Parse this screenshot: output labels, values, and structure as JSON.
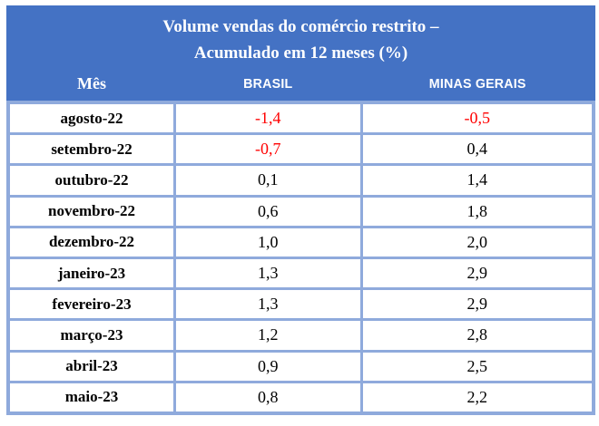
{
  "table": {
    "title_line1": "Volume vendas do comércio restrito –",
    "title_line2": "Acumulado em 12 meses (%)",
    "columns": [
      {
        "label": "Mês"
      },
      {
        "label": "BRASIL"
      },
      {
        "label": "MINAS GERAIS"
      }
    ],
    "rows": [
      {
        "mes": "agosto-22",
        "brasil": "-1,4",
        "minas_gerais": "-0,5"
      },
      {
        "mes": "setembro-22",
        "brasil": "-0,7",
        "minas_gerais": "0,4"
      },
      {
        "mes": "outubro-22",
        "brasil": "0,1",
        "minas_gerais": "1,4"
      },
      {
        "mes": "novembro-22",
        "brasil": "0,6",
        "minas_gerais": "1,8"
      },
      {
        "mes": "dezembro-22",
        "brasil": "1,0",
        "minas_gerais": "2,0"
      },
      {
        "mes": "janeiro-23",
        "brasil": "1,3",
        "minas_gerais": "2,9"
      },
      {
        "mes": "fevereiro-23",
        "brasil": "1,3",
        "minas_gerais": "2,9"
      },
      {
        "mes": "março-23",
        "brasil": "1,2",
        "minas_gerais": "2,8"
      },
      {
        "mes": "abril-23",
        "brasil": "0,9",
        "minas_gerais": "2,5"
      },
      {
        "mes": "maio-23",
        "brasil": "0,8",
        "minas_gerais": "2,2"
      }
    ]
  },
  "colors": {
    "header_bg": "#4472C4",
    "border": "#8FAADC",
    "negative_value": "#FF0000",
    "header_text": "#FFFFFF",
    "body_text": "#000000",
    "cell_bg": "#FFFFFF"
  },
  "chart_data": {
    "type": "table",
    "title": "Volume vendas do comércio restrito – Acumulado em 12 meses (%)",
    "categories": [
      "agosto-22",
      "setembro-22",
      "outubro-22",
      "novembro-22",
      "dezembro-22",
      "janeiro-23",
      "fevereiro-23",
      "março-23",
      "abril-23",
      "maio-23"
    ],
    "series": [
      {
        "name": "BRASIL",
        "values": [
          -1.4,
          -0.7,
          0.1,
          0.6,
          1.0,
          1.3,
          1.3,
          1.2,
          0.9,
          0.8
        ]
      },
      {
        "name": "MINAS GERAIS",
        "values": [
          -0.5,
          0.4,
          1.4,
          1.8,
          2.0,
          2.9,
          2.9,
          2.8,
          2.5,
          2.2
        ]
      }
    ],
    "layout": {
      "negative_values_in_red": true,
      "grid": true,
      "legend_position": "none"
    }
  }
}
